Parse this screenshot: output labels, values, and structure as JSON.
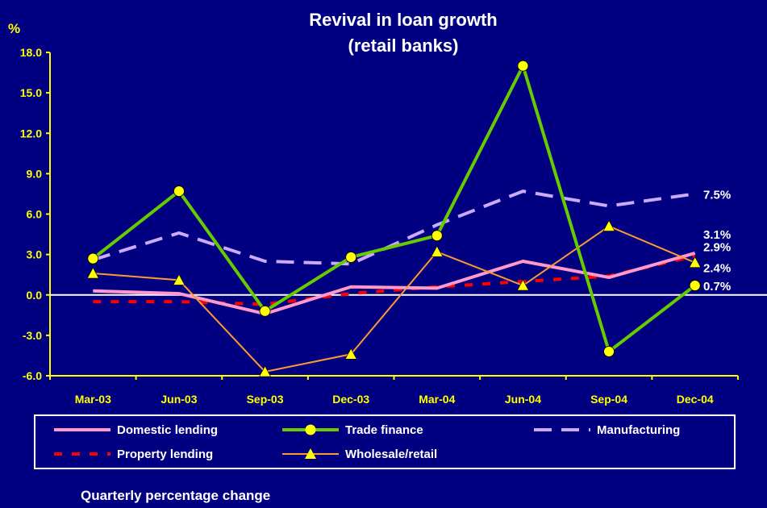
{
  "chart_data": {
    "type": "line",
    "title_line1": "Revival in loan growth",
    "title_line2": "(retail banks)",
    "ylabel": "%",
    "footnote": "Quarterly percentage change",
    "categories": [
      "Mar-03",
      "Jun-03",
      "Sep-03",
      "Dec-03",
      "Mar-04",
      "Jun-04",
      "Sep-04",
      "Dec-04"
    ],
    "ylim": [
      -6,
      18
    ],
    "yticks": [
      "18.0",
      "15.0",
      "12.0",
      "9.0",
      "6.0",
      "3.0",
      "0.0",
      "-3.0",
      "-6.0"
    ],
    "series": [
      {
        "name": "Domestic lending",
        "values": [
          0.3,
          0.1,
          -1.4,
          0.6,
          0.5,
          2.5,
          1.3,
          3.1
        ],
        "color": "#ff99cc",
        "style": "solid",
        "width": 4,
        "marker": "none",
        "end_label": "3.1%"
      },
      {
        "name": "Trade finance",
        "values": [
          2.7,
          7.7,
          -1.2,
          2.8,
          4.4,
          17.0,
          -4.2,
          0.7
        ],
        "color": "#66cc00",
        "style": "solid",
        "width": 4,
        "marker": "circle",
        "end_label": "0.7%"
      },
      {
        "name": "Manufacturing",
        "values": [
          2.6,
          4.6,
          2.5,
          2.3,
          5.2,
          7.7,
          6.6,
          7.5
        ],
        "color": "#ccaaff",
        "style": "dashed",
        "width": 4,
        "marker": "none",
        "end_label": "7.5%"
      },
      {
        "name": "Property lending",
        "values": [
          -0.5,
          -0.5,
          -0.7,
          0.1,
          0.6,
          1.0,
          1.4,
          2.9
        ],
        "color": "#ff0000",
        "style": "dotted",
        "width": 4,
        "marker": "none",
        "end_label": "2.9%"
      },
      {
        "name": "Wholesale/retail",
        "values": [
          1.6,
          1.1,
          -5.7,
          -4.4,
          3.2,
          0.7,
          5.1,
          2.4
        ],
        "color": "#ff9933",
        "style": "solid",
        "width": 2,
        "marker": "triangle",
        "end_label": "2.4%"
      }
    ],
    "marker_color": "#ffff00",
    "axis_color": "#ffff00",
    "zero_line_color": "#ffffff",
    "legend_position": "bottom",
    "grid": false
  }
}
